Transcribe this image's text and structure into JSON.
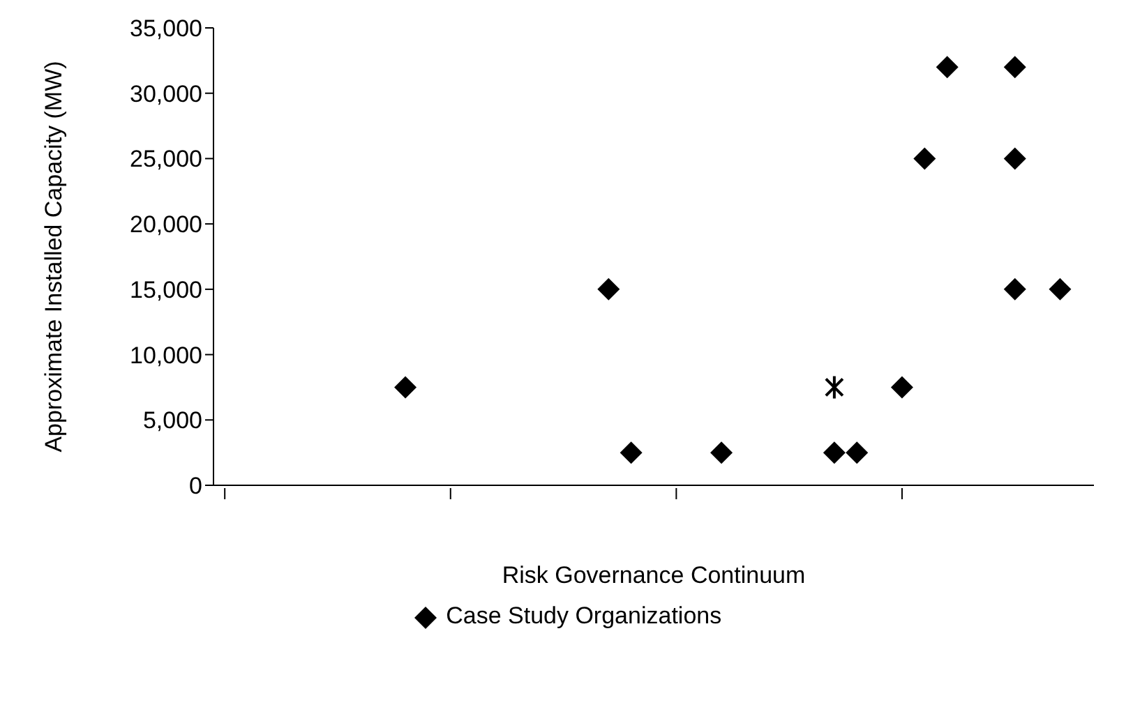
{
  "chart_data": {
    "type": "scatter",
    "xlabel": "Risk Governance Continuum",
    "ylabel": "Approximate Installed Capacity (MW)",
    "categories": [
      null,
      null,
      null,
      null,
      null,
      null,
      null,
      null,
      null,
      null,
      null,
      null,
      null,
      null,
      null,
      null,
      null,
      null,
      null,
      null,
      null,
      null,
      null,
      null,
      null,
      null,
      null,
      null,
      null,
      null,
      null,
      null,
      null,
      null,
      null,
      null,
      null,
      null,
      null
    ],
    "ylim": [
      0,
      35000
    ],
    "yticks": [
      {
        "value": 0,
        "label": "0"
      },
      {
        "value": 5000,
        "label": "5,000"
      },
      {
        "value": 10000,
        "label": "10,000"
      },
      {
        "value": 15000,
        "label": "15,000"
      },
      {
        "value": 20000,
        "label": "20,000"
      },
      {
        "value": 25000,
        "label": "25,000"
      },
      {
        "value": 30000,
        "label": "30,000"
      },
      {
        "value": 35000,
        "label": "35,000"
      }
    ],
    "tick_labels": "y",
    "grid": false,
    "legend": "bottom",
    "series": [
      {
        "name": "Case Study Organizations",
        "color": "#000000",
        "marker": "diamond",
        "values": [
          null,
          null,
          null,
          null,
          null,
          null,
          null,
          null,
          7500,
          null,
          null,
          null,
          null,
          null,
          null,
          null,
          null,
          15000,
          2500,
          null,
          null,
          null,
          2500,
          null,
          null,
          null,
          null,
          2500,
          2500,
          null,
          7500,
          25000,
          32000,
          null,
          null,
          32000,
          null,
          15000,
          null
        ]
      },
      {
        "color": "#000000",
        "marker": "diamond",
        "values": [
          null,
          null,
          null,
          null,
          null,
          null,
          null,
          null,
          null,
          null,
          null,
          null,
          null,
          null,
          null,
          null,
          null,
          null,
          null,
          null,
          null,
          null,
          null,
          null,
          null,
          null,
          null,
          null,
          null,
          null,
          null,
          null,
          null,
          null,
          null,
          25000,
          null,
          null,
          null
        ]
      },
      {
        "color": "#000000",
        "marker": "diamond",
        "values": [
          null,
          null,
          null,
          null,
          null,
          null,
          null,
          null,
          null,
          null,
          null,
          null,
          null,
          null,
          null,
          null,
          null,
          null,
          null,
          null,
          null,
          null,
          null,
          null,
          null,
          null,
          null,
          null,
          null,
          null,
          null,
          null,
          null,
          null,
          null,
          15000,
          null,
          null,
          null
        ]
      },
      {
        "color": "#000000",
        "marker": "cross",
        "values": [
          null,
          null,
          null,
          null,
          null,
          null,
          null,
          null,
          null,
          null,
          null,
          null,
          null,
          null,
          null,
          null,
          null,
          null,
          null,
          null,
          null,
          null,
          null,
          null,
          null,
          null,
          null,
          7500,
          null,
          null,
          null,
          null,
          null,
          null,
          null,
          null,
          null,
          null,
          null
        ]
      }
    ]
  }
}
